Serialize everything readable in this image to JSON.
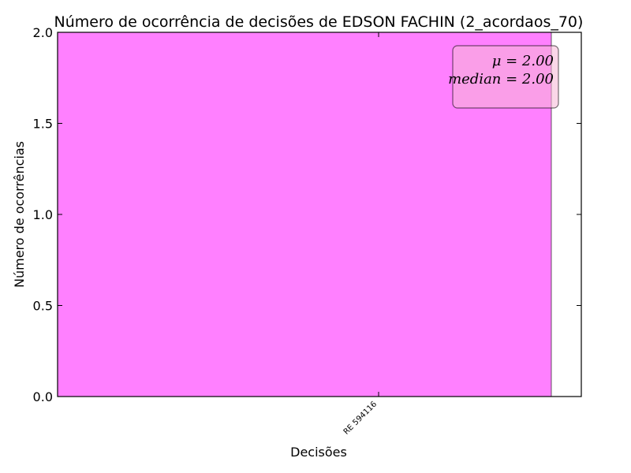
{
  "chart_data": {
    "type": "bar",
    "title": "Número de ocorrência de decisões de EDSON FACHIN (2_acordaos_70)",
    "xlabel": "Decisões",
    "ylabel": "Número de ocorrências",
    "categories": [
      "RE 594116"
    ],
    "values": [
      2
    ],
    "ylim": [
      0,
      2.0
    ],
    "yticks": [
      0.0,
      0.5,
      1.0,
      1.5,
      2.0
    ],
    "ytick_labels": [
      "0.0",
      "0.5",
      "1.0",
      "1.5",
      "2.0"
    ],
    "bar_color": "#ff80ff",
    "grid": false,
    "stats_box": {
      "mean_label": "μ = 2.00",
      "median_label": "median = 2.00",
      "placement": "top-right",
      "facecolor": "#f5b7d6"
    }
  }
}
